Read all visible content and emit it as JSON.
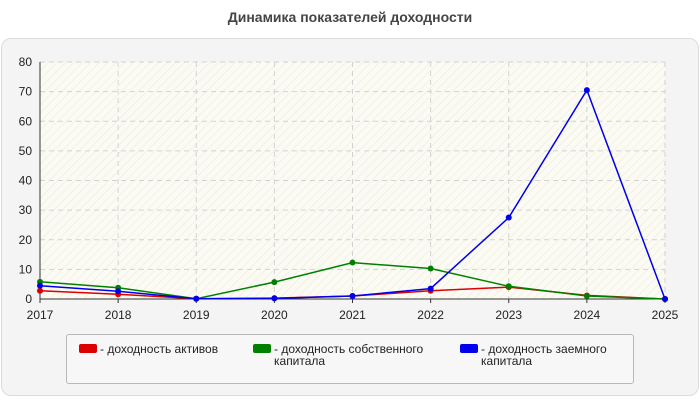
{
  "chart_data": {
    "type": "line",
    "title": "Динамика показателей доходности",
    "xlabel": "",
    "ylabel": "",
    "x": [
      "2017",
      "2018",
      "2019",
      "2020",
      "2021",
      "2022",
      "2023",
      "2024",
      "2025"
    ],
    "ylim": [
      0,
      80
    ],
    "yticks": [
      0,
      10,
      20,
      30,
      40,
      50,
      60,
      70,
      80
    ],
    "grid": true,
    "legend_position": "bottom",
    "series": [
      {
        "name": "- доходность активов",
        "color": "#dd0000",
        "values": [
          2.8,
          1.6,
          0.1,
          0.3,
          1.0,
          2.8,
          4.0,
          1.2,
          0.0
        ]
      },
      {
        "name": "- доходность собственного капитала",
        "color": "#008000",
        "values": [
          5.8,
          3.8,
          0.1,
          5.7,
          12.3,
          10.3,
          4.3,
          1.0,
          0.0
        ]
      },
      {
        "name": "- доходность заемного капитала",
        "color": "#0000ee",
        "values": [
          4.5,
          2.6,
          0.1,
          0.2,
          1.0,
          3.5,
          27.5,
          70.5,
          0.0
        ]
      }
    ]
  }
}
